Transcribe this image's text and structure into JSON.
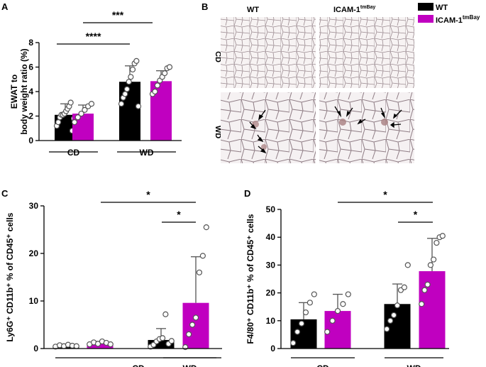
{
  "panels": {
    "A": "A",
    "B": "B",
    "C": "C",
    "D": "D"
  },
  "legend": {
    "wt": "WT",
    "icam_main": "ICAM-1",
    "icam_sup": "tmBay"
  },
  "histology": {
    "col_wt": "WT",
    "col_icam_main": "ICAM-1",
    "col_icam_sup": "tmBay",
    "row_cd": "CD",
    "row_wd": "WD"
  },
  "colors": {
    "wt": "#000000",
    "icam": "#c000c0",
    "point_fill": "#ffffff"
  },
  "chart_data": [
    {
      "id": "A",
      "type": "bar",
      "ylabel_lines": [
        "EWAT to",
        "body weight ratio (%)"
      ],
      "ylim": [
        0,
        8
      ],
      "yticks": [
        0,
        2,
        4,
        6,
        8
      ],
      "groups": [
        "CD",
        "WD"
      ],
      "series": [
        {
          "name": "WT",
          "means": [
            2.1,
            4.8
          ],
          "sds": [
            0.9,
            1.3
          ],
          "points": [
            [
              1.2,
              1.5,
              1.9,
              2.1,
              2.1,
              2.2,
              2.4,
              2.6,
              2.8,
              3.1,
              0.8,
              1.8
            ],
            [
              3.0,
              3.5,
              3.8,
              4.2,
              4.8,
              5.2,
              5.8,
              6.3,
              6.5,
              2.8
            ]
          ]
        },
        {
          "name": "ICAM-1tmBay",
          "means": [
            2.2,
            4.85
          ],
          "sds": [
            0.7,
            0.85
          ],
          "points": [
            [
              1.5,
              1.9,
              2.2,
              2.5,
              2.8,
              3.0
            ],
            [
              3.8,
              4.0,
              4.5,
              4.9,
              5.2,
              5.5,
              5.9,
              6.0
            ]
          ]
        }
      ],
      "significance": [
        {
          "label": "****",
          "from": "WT-CD",
          "to": "WT-WD"
        },
        {
          "label": "***",
          "from": "ICAM-CD",
          "to": "ICAM-WD"
        }
      ]
    },
    {
      "id": "C",
      "type": "bar",
      "ylabel": "Ly6G⁺ CD11b⁺ % of CD45⁺ cells",
      "ylim": [
        0,
        30
      ],
      "yticks": [
        0,
        10,
        20,
        30
      ],
      "groups": [
        "CD",
        "WD"
      ],
      "series": [
        {
          "name": "WT",
          "means": [
            0.6,
            1.8
          ],
          "sds": [
            0.3,
            2.4
          ],
          "points": [
            [
              0.4,
              0.7,
              0.5,
              0.8,
              0.6,
              0.5
            ],
            [
              0.4,
              0.8,
              1.5,
              2.0,
              2.2,
              7.2,
              1.0,
              1.6
            ]
          ]
        },
        {
          "name": "ICAM-1tmBay",
          "means": [
            1.1,
            9.6
          ],
          "sds": [
            0.4,
            9.7
          ],
          "points": [
            [
              0.9,
              1.3,
              1.0,
              1.5,
              1.2,
              0.9
            ],
            [
              0.3,
              3.0,
              5.0,
              6.5,
              16.0,
              19.5,
              25.5
            ]
          ]
        }
      ],
      "significance": [
        {
          "label": "*",
          "from": "ICAM-CD",
          "to": "ICAM-WD"
        },
        {
          "label": "*",
          "from": "WT-WD",
          "to": "ICAM-WD"
        }
      ]
    },
    {
      "id": "D",
      "type": "bar",
      "ylabel": "F4/80⁺ CD11b⁺ % of CD45⁺ cells",
      "ylim": [
        0,
        50
      ],
      "yticks": [
        0,
        10,
        20,
        30,
        40,
        50
      ],
      "groups": [
        "CD",
        "WD"
      ],
      "series": [
        {
          "name": "WT",
          "means": [
            10.5,
            16.0
          ],
          "sds": [
            6.0,
            7.2
          ],
          "points": [
            [
              2.0,
              6.0,
              9.0,
              13.0,
              16.5,
              19.5
            ],
            [
              7.0,
              10.0,
              12.0,
              15.5,
              21.0,
              22.0,
              30.0
            ]
          ]
        },
        {
          "name": "ICAM-1tmBay",
          "means": [
            13.5,
            27.8
          ],
          "sds": [
            6.0,
            11.8
          ],
          "points": [
            [
              6.0,
              10.0,
              13.5,
              16.0,
              19.5
            ],
            [
              16.0,
              21.0,
              23.0,
              30.0,
              32.0,
              38.0,
              40.0,
              40.5
            ]
          ]
        }
      ],
      "significance": [
        {
          "label": "*",
          "from": "WT-CD",
          "to": "ICAM-WD"
        },
        {
          "label": "*",
          "from": "WT-WD",
          "to": "ICAM-WD"
        }
      ]
    }
  ]
}
